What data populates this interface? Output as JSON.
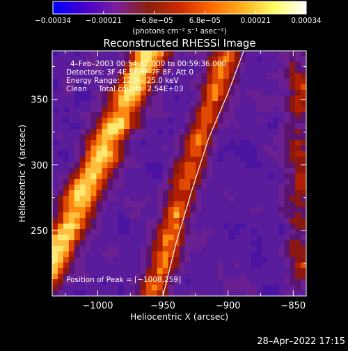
{
  "chart_data": {
    "type": "heatmap",
    "title": "Reconstructed RHESSI Image",
    "xlabel": "Heliocentric X (arcsec)",
    "ylabel": "Heliocentric Y (arcsec)",
    "xlim": [
      -1035,
      -840
    ],
    "ylim": [
      200,
      387
    ],
    "xticks": [
      -1000,
      -950,
      -900,
      -850
    ],
    "xtick_labels": [
      "−1000",
      "−950",
      "−900",
      "−850"
    ],
    "yticks": [
      250,
      300,
      350
    ],
    "ytick_labels": [
      "250",
      "300",
      "350"
    ],
    "colorbar": {
      "range": [
        -0.00034,
        0.00034
      ],
      "tick_labels": [
        "−0.00034",
        "−0.00021",
        "−6.8e−05",
        "6.8e−05",
        "0.00021",
        "0.00034"
      ],
      "unit_label": "(photons cm⁻² s⁻¹ asec⁻²)"
    },
    "colormap": [
      "#0000ff",
      "#4400cc",
      "#7a1f9e",
      "#8a2010",
      "#cc2a00",
      "#ff6a00",
      "#ffb020",
      "#ffff66",
      "#ffffff"
    ],
    "annotations": {
      "time_range": "4–Feb–2003 00:54:12.000 to 00:59:36.000",
      "detectors": "Detectors: 3F 4F 5F 6F 7F 8F, Att 0",
      "energy": "Energy Range: 12.0 – 25.0 keV",
      "clean": "Clean     Total counts: 2.54E+03",
      "peak": "Position of Peak = [−1008,259]"
    },
    "peak_position": [
      -1008,
      259
    ],
    "limb_curve": [
      [
        -950,
        200
      ],
      [
        -940,
        240
      ],
      [
        -928,
        280
      ],
      [
        -915,
        320
      ],
      [
        -900,
        355
      ],
      [
        -888,
        387
      ]
    ]
  },
  "footer": {
    "timestamp": "28–Apr–2022 17:15"
  }
}
